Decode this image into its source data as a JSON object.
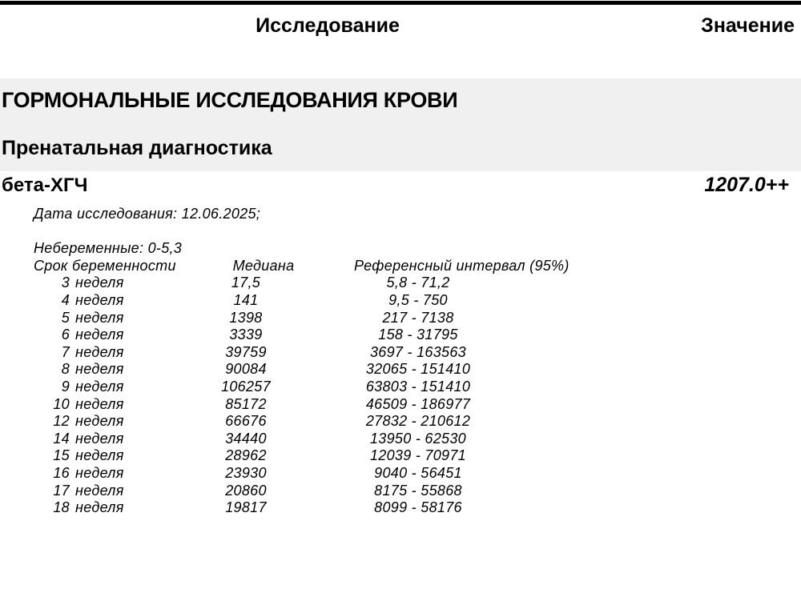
{
  "header": {
    "col_study": "Исследование",
    "col_value": "Значение"
  },
  "sections": {
    "main_title": "ГОРМОНАЛЬНЫЕ ИССЛЕДОВАНИЯ КРОВИ",
    "subsection_title": "Пренатальная диагностика"
  },
  "result": {
    "name": "бета-ХГЧ",
    "value": "1207.0++"
  },
  "details": {
    "date_line": "Дата исследования: 12.06.2025;",
    "nonpregnant_line": "Небеременные: 0-5,3",
    "table": {
      "col_week": "Срок беременности",
      "col_median": "Медиана",
      "col_ref": "Референсный интервал (95%)",
      "week_unit": "неделя",
      "rows": [
        {
          "week": "3",
          "median": "17,5",
          "ref": "5,8 - 71,2"
        },
        {
          "week": "4",
          "median": "141",
          "ref": "9,5 - 750"
        },
        {
          "week": "5",
          "median": "1398",
          "ref": "217 - 7138"
        },
        {
          "week": "6",
          "median": "3339",
          "ref": "158 - 31795"
        },
        {
          "week": "7",
          "median": "39759",
          "ref": "3697 - 163563"
        },
        {
          "week": "8",
          "median": "90084",
          "ref": "32065 - 151410"
        },
        {
          "week": "9",
          "median": "106257",
          "ref": "63803 - 151410"
        },
        {
          "week": "10",
          "median": "85172",
          "ref": "46509 - 186977"
        },
        {
          "week": "12",
          "median": "66676",
          "ref": "27832 - 210612"
        },
        {
          "week": "14",
          "median": "34440",
          "ref": "13950 - 62530"
        },
        {
          "week": "15",
          "median": "28962",
          "ref": "12039 - 70971"
        },
        {
          "week": "16",
          "median": "23930",
          "ref": "9040 - 56451"
        },
        {
          "week": "17",
          "median": "20860",
          "ref": "8175 - 55868"
        },
        {
          "week": "18",
          "median": "19817",
          "ref": "8099 - 58176"
        }
      ]
    }
  },
  "colors": {
    "top_bar": "#000000",
    "section_band_bg": "#f0f0f0",
    "text": "#000000"
  }
}
